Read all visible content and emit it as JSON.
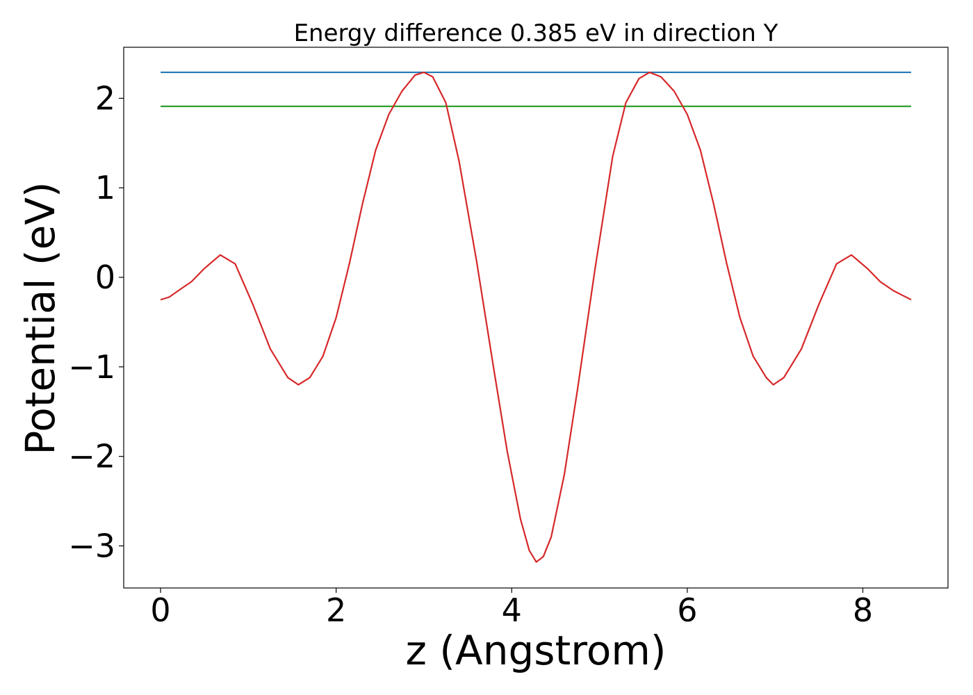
{
  "chart_data": {
    "type": "line",
    "title": "Energy difference 0.385 eV in direction Y",
    "xlabel": "z (Angstrom)",
    "ylabel": "Potential (eV)",
    "xlim": [
      -0.42,
      8.97
    ],
    "ylim": [
      -3.47,
      2.57
    ],
    "xticks": [
      0,
      2,
      4,
      6,
      8
    ],
    "xtick_labels": [
      "0",
      "2",
      "4",
      "6",
      "8"
    ],
    "yticks": [
      -3,
      -2,
      -1,
      0,
      1,
      2
    ],
    "ytick_labels": [
      "−3",
      "−2",
      "−1",
      "0",
      "1",
      "2"
    ],
    "grid": false,
    "series": [
      {
        "color": "#1f77b4",
        "x": [
          0,
          8.55
        ],
        "y": [
          2.29,
          2.29
        ]
      },
      {
        "color": "#2ca02c",
        "x": [
          0,
          8.55
        ],
        "y": [
          1.91,
          1.91
        ]
      },
      {
        "color": "#d62728",
        "x": [
          0,
          0.1,
          0.2,
          0.35,
          0.5,
          0.68,
          0.85,
          1.05,
          1.25,
          1.45,
          1.57,
          1.7,
          1.85,
          2.0,
          2.15,
          2.3,
          2.45,
          2.6,
          2.75,
          2.9,
          3.0,
          3.1,
          3.25,
          3.4,
          3.6,
          3.8,
          3.95,
          4.1,
          4.2,
          4.28,
          4.36,
          4.45,
          4.6,
          4.75,
          4.95,
          5.15,
          5.3,
          5.45,
          5.57,
          5.7,
          5.85,
          6.0,
          6.15,
          6.3,
          6.45,
          6.6,
          6.75,
          6.9,
          6.98,
          7.1,
          7.3,
          7.5,
          7.7,
          7.87,
          8.05,
          8.2,
          8.35,
          8.45,
          8.55
        ],
        "y": [
          -0.25,
          -0.22,
          -0.15,
          -0.05,
          0.1,
          0.25,
          0.15,
          -0.3,
          -0.8,
          -1.12,
          -1.2,
          -1.12,
          -0.88,
          -0.45,
          0.15,
          0.82,
          1.42,
          1.82,
          2.08,
          2.26,
          2.29,
          2.24,
          1.95,
          1.3,
          0.18,
          -1.05,
          -1.95,
          -2.7,
          -3.05,
          -3.18,
          -3.12,
          -2.9,
          -2.2,
          -1.25,
          0.1,
          1.35,
          1.95,
          2.22,
          2.29,
          2.24,
          2.08,
          1.82,
          1.42,
          0.82,
          0.15,
          -0.45,
          -0.88,
          -1.12,
          -1.2,
          -1.12,
          -0.8,
          -0.3,
          0.15,
          0.25,
          0.1,
          -0.05,
          -0.15,
          -0.2,
          -0.25
        ]
      }
    ]
  }
}
